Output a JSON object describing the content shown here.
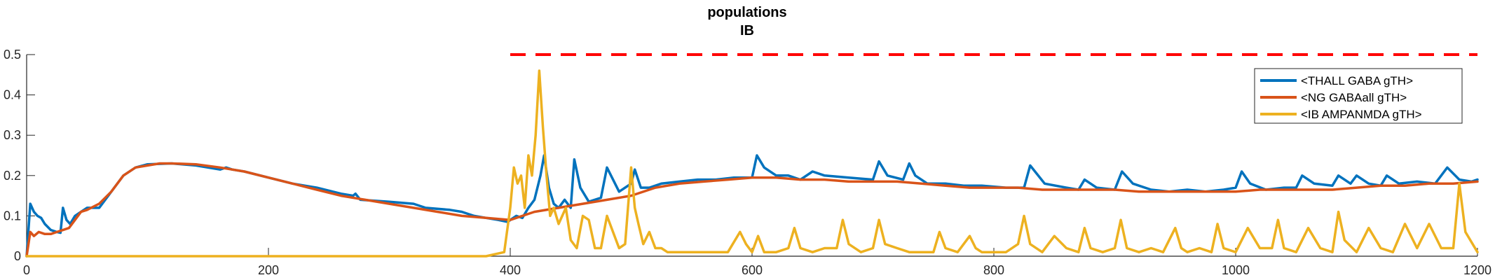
{
  "chart_data": {
    "type": "line",
    "title": [
      "populations",
      "IB"
    ],
    "xlabel": "",
    "ylabel": "",
    "xlim": [
      0,
      1200
    ],
    "ylim": [
      0,
      0.5
    ],
    "xticks": [
      0,
      200,
      400,
      600,
      800,
      1000,
      1200
    ],
    "yticks": [
      0,
      0.1,
      0.2,
      0.3,
      0.4,
      0.5
    ],
    "xtick_labels": [
      "0",
      "200",
      "400",
      "600",
      "800",
      "1000",
      "1200"
    ],
    "ytick_labels": [
      "0",
      "0.1",
      "0.2",
      "0.3",
      "0.4",
      "0.5"
    ],
    "grid": false,
    "legend_position": "top-right",
    "reference_line": {
      "style": "dashed",
      "color": "#ff0000",
      "y": 0.5,
      "x": [
        400,
        1200
      ]
    },
    "series": [
      {
        "name": "<THALL GABA gTH>",
        "color": "#0072bd",
        "x": [
          0,
          3,
          6,
          9,
          12,
          15,
          20,
          25,
          28,
          30,
          33,
          36,
          40,
          45,
          50,
          55,
          60,
          70,
          80,
          90,
          100,
          120,
          140,
          160,
          165,
          170,
          180,
          200,
          220,
          240,
          260,
          270,
          272,
          276,
          300,
          320,
          325,
          330,
          350,
          360,
          365,
          370,
          380,
          390,
          398,
          400,
          405,
          410,
          415,
          420,
          425,
          428,
          432,
          436,
          440,
          445,
          450,
          453,
          458,
          465,
          475,
          480,
          490,
          500,
          503,
          508,
          515,
          525,
          540,
          555,
          570,
          585,
          600,
          604,
          610,
          620,
          630,
          640,
          650,
          660,
          680,
          700,
          705,
          712,
          725,
          730,
          735,
          745,
          760,
          775,
          790,
          810,
          825,
          830,
          842,
          860,
          870,
          875,
          885,
          900,
          906,
          915,
          930,
          945,
          960,
          975,
          990,
          1000,
          1005,
          1012,
          1025,
          1040,
          1050,
          1055,
          1065,
          1080,
          1085,
          1095,
          1100,
          1110,
          1120,
          1125,
          1135,
          1150,
          1165,
          1175,
          1185,
          1195,
          1200
        ],
        "y": [
          0,
          0.13,
          0.11,
          0.1,
          0.095,
          0.08,
          0.065,
          0.06,
          0.058,
          0.12,
          0.09,
          0.08,
          0.1,
          0.11,
          0.12,
          0.12,
          0.12,
          0.16,
          0.2,
          0.22,
          0.228,
          0.23,
          0.225,
          0.215,
          0.22,
          0.215,
          0.21,
          0.195,
          0.18,
          0.17,
          0.155,
          0.15,
          0.155,
          0.14,
          0.135,
          0.13,
          0.125,
          0.12,
          0.115,
          0.11,
          0.105,
          0.1,
          0.095,
          0.09,
          0.085,
          0.09,
          0.1,
          0.095,
          0.12,
          0.14,
          0.2,
          0.25,
          0.17,
          0.13,
          0.12,
          0.14,
          0.12,
          0.24,
          0.17,
          0.135,
          0.145,
          0.22,
          0.16,
          0.18,
          0.215,
          0.17,
          0.17,
          0.18,
          0.185,
          0.19,
          0.19,
          0.195,
          0.195,
          0.25,
          0.22,
          0.2,
          0.2,
          0.19,
          0.21,
          0.2,
          0.195,
          0.19,
          0.235,
          0.2,
          0.19,
          0.23,
          0.2,
          0.18,
          0.18,
          0.175,
          0.175,
          0.17,
          0.17,
          0.225,
          0.18,
          0.17,
          0.165,
          0.19,
          0.17,
          0.165,
          0.21,
          0.18,
          0.165,
          0.16,
          0.165,
          0.16,
          0.165,
          0.17,
          0.21,
          0.18,
          0.165,
          0.17,
          0.17,
          0.2,
          0.18,
          0.175,
          0.2,
          0.18,
          0.2,
          0.18,
          0.175,
          0.2,
          0.18,
          0.185,
          0.18,
          0.22,
          0.19,
          0.185,
          0.19
        ]
      },
      {
        "name": "<NG GABAall gTH>",
        "color": "#d95319",
        "x": [
          0,
          3,
          6,
          10,
          15,
          20,
          25,
          30,
          35,
          40,
          45,
          50,
          60,
          70,
          80,
          90,
          100,
          110,
          120,
          140,
          160,
          180,
          200,
          220,
          240,
          260,
          280,
          300,
          320,
          340,
          360,
          380,
          400,
          420,
          440,
          460,
          480,
          500,
          520,
          540,
          560,
          580,
          600,
          620,
          640,
          660,
          680,
          700,
          720,
          740,
          760,
          780,
          800,
          820,
          840,
          860,
          880,
          900,
          920,
          940,
          960,
          980,
          1000,
          1020,
          1040,
          1060,
          1080,
          1100,
          1120,
          1140,
          1160,
          1180,
          1200
        ],
        "y": [
          0,
          0.06,
          0.05,
          0.06,
          0.055,
          0.055,
          0.06,
          0.065,
          0.07,
          0.09,
          0.11,
          0.115,
          0.13,
          0.16,
          0.2,
          0.22,
          0.225,
          0.23,
          0.23,
          0.228,
          0.22,
          0.21,
          0.195,
          0.18,
          0.165,
          0.15,
          0.14,
          0.13,
          0.12,
          0.11,
          0.1,
          0.095,
          0.09,
          0.11,
          0.12,
          0.13,
          0.14,
          0.15,
          0.17,
          0.18,
          0.185,
          0.19,
          0.195,
          0.195,
          0.19,
          0.19,
          0.185,
          0.185,
          0.185,
          0.18,
          0.175,
          0.17,
          0.17,
          0.17,
          0.165,
          0.165,
          0.165,
          0.165,
          0.16,
          0.16,
          0.16,
          0.16,
          0.16,
          0.165,
          0.165,
          0.165,
          0.165,
          0.17,
          0.175,
          0.175,
          0.18,
          0.18,
          0.185
        ]
      },
      {
        "name": "<IB AMPANMDA gTH>",
        "color": "#edb120",
        "x": [
          0,
          100,
          200,
          300,
          380,
          395,
          400,
          403,
          406,
          409,
          412,
          415,
          418,
          421,
          424,
          427,
          430,
          433,
          436,
          440,
          443,
          446,
          450,
          455,
          460,
          465,
          470,
          475,
          480,
          490,
          495,
          500,
          503,
          506,
          510,
          515,
          520,
          525,
          530,
          540,
          550,
          560,
          570,
          580,
          590,
          595,
          600,
          605,
          610,
          620,
          630,
          635,
          640,
          650,
          660,
          670,
          675,
          680,
          690,
          700,
          705,
          710,
          720,
          730,
          740,
          750,
          755,
          760,
          770,
          780,
          785,
          790,
          800,
          810,
          820,
          825,
          830,
          840,
          850,
          860,
          870,
          875,
          880,
          890,
          900,
          905,
          910,
          920,
          930,
          940,
          950,
          955,
          960,
          970,
          980,
          985,
          990,
          1000,
          1010,
          1020,
          1030,
          1035,
          1040,
          1050,
          1060,
          1070,
          1080,
          1085,
          1090,
          1100,
          1110,
          1120,
          1130,
          1140,
          1150,
          1160,
          1170,
          1180,
          1185,
          1190,
          1200
        ],
        "y": [
          0,
          0,
          0,
          0,
          0,
          0.01,
          0.12,
          0.22,
          0.18,
          0.2,
          0.12,
          0.25,
          0.2,
          0.3,
          0.46,
          0.32,
          0.2,
          0.1,
          0.12,
          0.08,
          0.1,
          0.12,
          0.04,
          0.02,
          0.1,
          0.09,
          0.02,
          0.02,
          0.1,
          0.02,
          0.03,
          0.22,
          0.12,
          0.08,
          0.03,
          0.06,
          0.02,
          0.02,
          0.01,
          0.01,
          0.01,
          0.01,
          0.01,
          0.01,
          0.06,
          0.03,
          0.01,
          0.05,
          0.01,
          0.01,
          0.02,
          0.07,
          0.02,
          0.01,
          0.02,
          0.02,
          0.09,
          0.03,
          0.01,
          0.02,
          0.09,
          0.03,
          0.02,
          0.01,
          0.01,
          0.01,
          0.06,
          0.02,
          0.01,
          0.05,
          0.02,
          0.01,
          0.01,
          0.01,
          0.03,
          0.1,
          0.03,
          0.01,
          0.05,
          0.02,
          0.01,
          0.07,
          0.02,
          0.01,
          0.02,
          0.09,
          0.02,
          0.01,
          0.02,
          0.01,
          0.07,
          0.02,
          0.01,
          0.02,
          0.01,
          0.08,
          0.02,
          0.01,
          0.07,
          0.02,
          0.02,
          0.09,
          0.02,
          0.01,
          0.07,
          0.02,
          0.01,
          0.11,
          0.04,
          0.01,
          0.07,
          0.02,
          0.01,
          0.08,
          0.02,
          0.08,
          0.02,
          0.02,
          0.18,
          0.06,
          0.01
        ]
      }
    ]
  }
}
